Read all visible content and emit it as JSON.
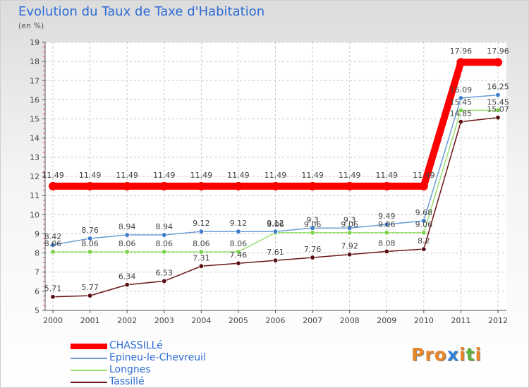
{
  "title": "Evolution du Taux de Taxe d'Habitation",
  "subtitle": "(en %)",
  "logo": {
    "text": "Proxiti",
    "colors": [
      "#e8862a",
      "#e8862a",
      "#e8862a",
      "#2f7fd8",
      "#e8862a",
      "#5ab13a",
      "#e8862a"
    ]
  },
  "chart_data": {
    "type": "line",
    "x": [
      "2000",
      "2001",
      "2002",
      "2003",
      "2004",
      "2005",
      "2006",
      "2007",
      "2008",
      "2009",
      "2010",
      "2011",
      "2012"
    ],
    "yticks": [
      "5",
      "6",
      "7",
      "8",
      "9",
      "10",
      "11",
      "12",
      "13",
      "14",
      "15",
      "16",
      "17",
      "18",
      "19"
    ],
    "ylim": [
      5,
      19
    ],
    "grid": true,
    "legend_position": "bottom-left",
    "series": [
      {
        "name": "CHASSILLé",
        "color": "#ff0000",
        "values": [
          11.49,
          11.49,
          11.49,
          11.49,
          11.49,
          11.49,
          11.49,
          11.49,
          11.49,
          11.49,
          11.49,
          17.96,
          17.96
        ],
        "labels": [
          "11.49",
          "11.49",
          "11.49",
          "11.49",
          "11.49",
          "11.49",
          "11.49",
          "11.49",
          "11.49",
          "11.49",
          "11.49",
          "17.96",
          "17.96"
        ],
        "thick": true
      },
      {
        "name": "Epineu-le-Chevreuil",
        "color": "#6a9ed6",
        "marker": "#3a7cc8",
        "values": [
          8.42,
          8.76,
          8.94,
          8.94,
          9.12,
          9.12,
          9.12,
          9.3,
          9.3,
          9.49,
          9.68,
          16.09,
          16.25
        ],
        "labels": [
          "8.42",
          "8.76",
          "8.94",
          "8.94",
          "9.12",
          "9.12",
          "9.12",
          "9.3",
          "9.3",
          "9.49",
          "9.68",
          "16.09",
          "16.25"
        ],
        "thick": false
      },
      {
        "name": "Longnes",
        "color": "#9ae070",
        "marker": "#7cd34a",
        "values": [
          8.06,
          8.06,
          8.06,
          8.06,
          8.06,
          8.06,
          9.06,
          9.06,
          9.06,
          9.06,
          9.06,
          15.45,
          15.45
        ],
        "labels": [
          "8.06",
          "8.06",
          "8.06",
          "8.06",
          "8.06",
          "8.06",
          "9.06",
          "9.06",
          "9.06",
          "9.06",
          "9.06",
          "15.45",
          "15.45"
        ],
        "thick": false
      },
      {
        "name": "Tassillé",
        "color": "#6b1515",
        "marker": "#5a1010",
        "values": [
          5.71,
          5.77,
          6.34,
          6.53,
          7.31,
          7.46,
          7.61,
          7.76,
          7.92,
          8.08,
          8.2,
          14.85,
          15.07
        ],
        "labels": [
          "5.71",
          "5.77",
          "6.34",
          "6.53",
          "7.31",
          "7.46",
          "7.61",
          "7.76",
          "7.92",
          "8.08",
          "8.2",
          "14.85",
          "15.07"
        ],
        "thick": false
      }
    ]
  }
}
